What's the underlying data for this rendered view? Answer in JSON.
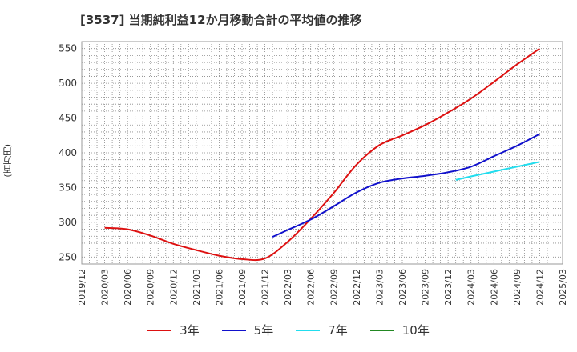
{
  "chart_data": {
    "type": "line",
    "title": "[3537]  当期純利益12か月移動合計の平均値の推移",
    "ylabel": "(百万円)",
    "xlabel": "",
    "ylim": [
      240,
      560
    ],
    "yticks": [
      250,
      300,
      350,
      400,
      450,
      500,
      550
    ],
    "x_categories": [
      "2019/12",
      "2020/03",
      "2020/06",
      "2020/09",
      "2020/12",
      "2021/03",
      "2021/06",
      "2021/09",
      "2021/12",
      "2022/03",
      "2022/06",
      "2022/09",
      "2022/12",
      "2023/03",
      "2023/06",
      "2023/09",
      "2023/12",
      "2024/03",
      "2024/06",
      "2024/09",
      "2024/12",
      "2025/03"
    ],
    "grid": true,
    "legend_position": "bottom",
    "series": [
      {
        "name": "3年",
        "color": "#dd1111",
        "points": [
          [
            "2020/03",
            292
          ],
          [
            "2020/06",
            290
          ],
          [
            "2020/09",
            281
          ],
          [
            "2020/12",
            269
          ],
          [
            "2021/03",
            260
          ],
          [
            "2021/06",
            252
          ],
          [
            "2021/09",
            247
          ],
          [
            "2021/12",
            248
          ],
          [
            "2022/03",
            272
          ],
          [
            "2022/06",
            305
          ],
          [
            "2022/09",
            342
          ],
          [
            "2022/12",
            383
          ],
          [
            "2023/03",
            411
          ],
          [
            "2023/06",
            425
          ],
          [
            "2023/09",
            440
          ],
          [
            "2023/12",
            458
          ],
          [
            "2024/03",
            478
          ],
          [
            "2024/06",
            502
          ],
          [
            "2024/09",
            527
          ],
          [
            "2024/12",
            550
          ]
        ]
      },
      {
        "name": "5年",
        "color": "#1111cc",
        "points": [
          [
            "2022/01",
            279
          ],
          [
            "2022/03",
            289
          ],
          [
            "2022/06",
            304
          ],
          [
            "2022/09",
            323
          ],
          [
            "2022/12",
            343
          ],
          [
            "2023/03",
            357
          ],
          [
            "2023/06",
            363
          ],
          [
            "2023/09",
            367
          ],
          [
            "2023/12",
            372
          ],
          [
            "2024/03",
            380
          ],
          [
            "2024/06",
            395
          ],
          [
            "2024/09",
            410
          ],
          [
            "2024/12",
            427
          ]
        ]
      },
      {
        "name": "7年",
        "color": "#22ddee",
        "points": [
          [
            "2024/01",
            361
          ],
          [
            "2024/03",
            366
          ],
          [
            "2024/06",
            373
          ],
          [
            "2024/09",
            380
          ],
          [
            "2024/12",
            387
          ]
        ]
      },
      {
        "name": "10年",
        "color": "#228822",
        "points": []
      }
    ]
  }
}
